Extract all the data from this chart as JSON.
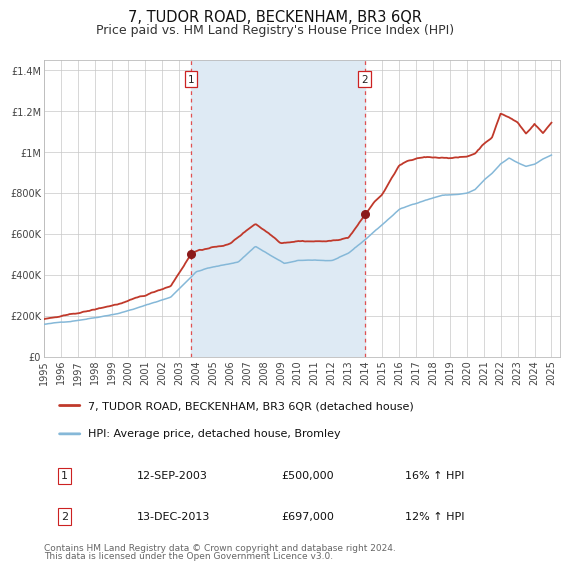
{
  "title": "7, TUDOR ROAD, BECKENHAM, BR3 6QR",
  "subtitle": "Price paid vs. HM Land Registry's House Price Index (HPI)",
  "ylim": [
    0,
    1450000
  ],
  "yticks": [
    0,
    200000,
    400000,
    600000,
    800000,
    1000000,
    1200000,
    1400000
  ],
  "ytick_labels": [
    "£0",
    "£200K",
    "£400K",
    "£600K",
    "£800K",
    "£1M",
    "£1.2M",
    "£1.4M"
  ],
  "xlim_start": 1995.0,
  "xlim_end": 2025.5,
  "xticks": [
    1995,
    1996,
    1997,
    1998,
    1999,
    2000,
    2001,
    2002,
    2003,
    2004,
    2005,
    2006,
    2007,
    2008,
    2009,
    2010,
    2011,
    2012,
    2013,
    2014,
    2015,
    2016,
    2017,
    2018,
    2019,
    2020,
    2021,
    2022,
    2023,
    2024,
    2025
  ],
  "marker1_x": 2003.71,
  "marker1_y": 500000,
  "marker2_x": 2013.96,
  "marker2_y": 697000,
  "marker1_date": "12-SEP-2003",
  "marker1_price": "£500,000",
  "marker1_hpi": "16% ↑ HPI",
  "marker2_date": "13-DEC-2013",
  "marker2_price": "£697,000",
  "marker2_hpi": "12% ↑ HPI",
  "legend_line1": "7, TUDOR ROAD, BECKENHAM, BR3 6QR (detached house)",
  "legend_line2": "HPI: Average price, detached house, Bromley",
  "line_color_red": "#c0392b",
  "line_color_blue": "#85b8d8",
  "shade_color": "#deeaf4",
  "vline_color": "#e05050",
  "marker_dot_color": "#8b1a1a",
  "footer1": "Contains HM Land Registry data © Crown copyright and database right 2024.",
  "footer2": "This data is licensed under the Open Government Licence v3.0.",
  "bg_color": "#ffffff",
  "grid_color": "#c8c8c8",
  "title_fontsize": 10.5,
  "subtitle_fontsize": 9,
  "tick_fontsize": 7,
  "legend_fontsize": 8,
  "table_fontsize": 8,
  "footer_fontsize": 6.5
}
